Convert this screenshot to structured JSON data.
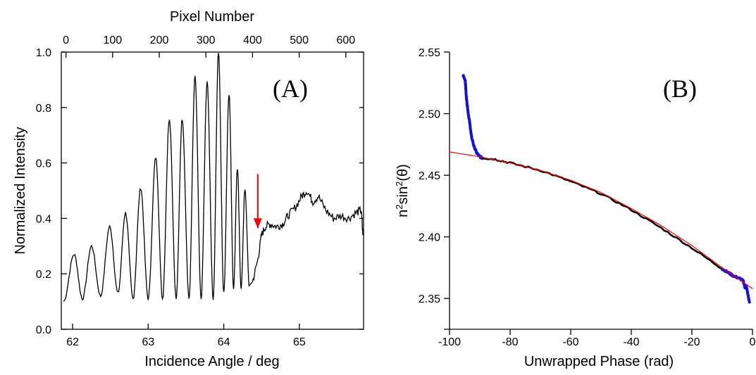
{
  "chart_data": [
    {
      "panel": "(A)",
      "type": "line",
      "xlabel": "Incidence Angle / deg",
      "ylabel": "Normalized Intensity",
      "x2label": "Pixel Number",
      "xlim": [
        61.85,
        65.85
      ],
      "ylim": [
        0.0,
        1.0
      ],
      "x2lim": [
        -10,
        638
      ],
      "xticks": [
        "62",
        "63",
        "64",
        "65"
      ],
      "yticks": [
        "0.0",
        "0.2",
        "0.4",
        "0.6",
        "0.8",
        "1.0"
      ],
      "x2ticks": [
        "0",
        "100",
        "200",
        "300",
        "400",
        "500",
        "600"
      ],
      "line_color": "#000000",
      "arrow": {
        "x": 64.45,
        "y_from": 0.56,
        "y_to": 0.37,
        "color": "#ff0000"
      },
      "oscillation": {
        "peaks": [
          {
            "x": 62.02,
            "y": 0.27
          },
          {
            "x": 62.25,
            "y": 0.3
          },
          {
            "x": 62.49,
            "y": 0.37
          },
          {
            "x": 62.7,
            "y": 0.42
          },
          {
            "x": 62.9,
            "y": 0.51
          },
          {
            "x": 63.1,
            "y": 0.62
          },
          {
            "x": 63.28,
            "y": 0.76
          },
          {
            "x": 63.45,
            "y": 0.76
          },
          {
            "x": 63.62,
            "y": 0.91
          },
          {
            "x": 63.78,
            "y": 0.89
          },
          {
            "x": 63.93,
            "y": 1.0
          },
          {
            "x": 64.07,
            "y": 0.85
          },
          {
            "x": 64.18,
            "y": 0.58
          },
          {
            "x": 64.28,
            "y": 0.5
          }
        ],
        "troughs": [
          {
            "x": 61.88,
            "y": 0.1
          },
          {
            "x": 62.13,
            "y": 0.11
          },
          {
            "x": 62.37,
            "y": 0.12
          },
          {
            "x": 62.6,
            "y": 0.13
          },
          {
            "x": 62.8,
            "y": 0.11
          },
          {
            "x": 63.0,
            "y": 0.11
          },
          {
            "x": 63.19,
            "y": 0.11
          },
          {
            "x": 63.37,
            "y": 0.11
          },
          {
            "x": 63.54,
            "y": 0.11
          },
          {
            "x": 63.7,
            "y": 0.11
          },
          {
            "x": 63.86,
            "y": 0.11
          },
          {
            "x": 64.0,
            "y": 0.13
          },
          {
            "x": 64.13,
            "y": 0.15
          },
          {
            "x": 64.23,
            "y": 0.15
          },
          {
            "x": 64.34,
            "y": 0.15
          }
        ]
      },
      "plateau": [
        [
          64.38,
          0.17
        ],
        [
          64.45,
          0.25
        ],
        [
          64.5,
          0.34
        ],
        [
          64.55,
          0.37
        ],
        [
          64.62,
          0.38
        ],
        [
          64.7,
          0.37
        ],
        [
          64.78,
          0.38
        ],
        [
          64.85,
          0.41
        ],
        [
          64.95,
          0.44
        ],
        [
          65.03,
          0.48
        ],
        [
          65.1,
          0.5
        ],
        [
          65.18,
          0.46
        ],
        [
          65.25,
          0.48
        ],
        [
          65.35,
          0.43
        ],
        [
          65.45,
          0.4
        ],
        [
          65.55,
          0.41
        ],
        [
          65.65,
          0.4
        ],
        [
          65.75,
          0.42
        ],
        [
          65.82,
          0.43
        ],
        [
          65.84,
          0.34
        ]
      ]
    },
    {
      "panel": "(B)",
      "type": "line",
      "xlabel": "Unwrapped Phase (rad)",
      "ylabel_base": "n",
      "ylabel_sup1": "2",
      "ylabel_mid": "sin",
      "ylabel_sup2": "2",
      "ylabel_tail": "(θ)",
      "xlim": [
        -100,
        0
      ],
      "ylim": [
        2.325,
        2.55
      ],
      "xticks": [
        "-100",
        "-80",
        "-60",
        "-40",
        "-20",
        "0"
      ],
      "yticks": [
        "2.35",
        "2.40",
        "2.45",
        "2.50",
        "2.55"
      ],
      "series": [
        {
          "color": "#1010e0",
          "points": [
            [
              -95.5,
              2.531
            ],
            [
              -94.8,
              2.527
            ],
            [
              -94.5,
              2.515
            ],
            [
              -94.2,
              2.508
            ],
            [
              -93.8,
              2.5
            ],
            [
              -93.3,
              2.492
            ],
            [
              -92.8,
              2.482
            ],
            [
              -92.0,
              2.474
            ],
            [
              -91.0,
              2.468
            ],
            [
              -90.0,
              2.465
            ],
            [
              -89.0,
              2.464
            ]
          ]
        },
        {
          "color": "#000000",
          "points": [
            [
              -89.0,
              2.464
            ],
            [
              -85.0,
              2.463
            ],
            [
              -80.0,
              2.46
            ],
            [
              -70.0,
              2.454
            ],
            [
              -60.0,
              2.445
            ],
            [
              -50.0,
              2.435
            ],
            [
              -40.0,
              2.422
            ],
            [
              -30.0,
              2.407
            ],
            [
              -20.0,
              2.391
            ],
            [
              -10.0,
              2.374
            ]
          ]
        },
        {
          "color": "#1010e0",
          "points": [
            [
              -10.0,
              2.374
            ],
            [
              -8.0,
              2.371
            ],
            [
              -6.0,
              2.368
            ],
            [
              -4.0,
              2.366
            ],
            [
              -3.0,
              2.364
            ],
            [
              -2.5,
              2.359
            ],
            [
              -2.0,
              2.36
            ],
            [
              -1.5,
              2.353
            ],
            [
              -1.0,
              2.347
            ]
          ]
        },
        {
          "color": "#ff0000",
          "fit": true,
          "points": [
            [
              -100,
              2.469
            ],
            [
              -90,
              2.465
            ],
            [
              -80,
              2.46
            ],
            [
              -70,
              2.454
            ],
            [
              -60,
              2.446
            ],
            [
              -50,
              2.436
            ],
            [
              -40,
              2.423
            ],
            [
              -30,
              2.409
            ],
            [
              -20,
              2.393
            ],
            [
              -10,
              2.375
            ],
            [
              0,
              2.358
            ]
          ]
        }
      ]
    }
  ]
}
